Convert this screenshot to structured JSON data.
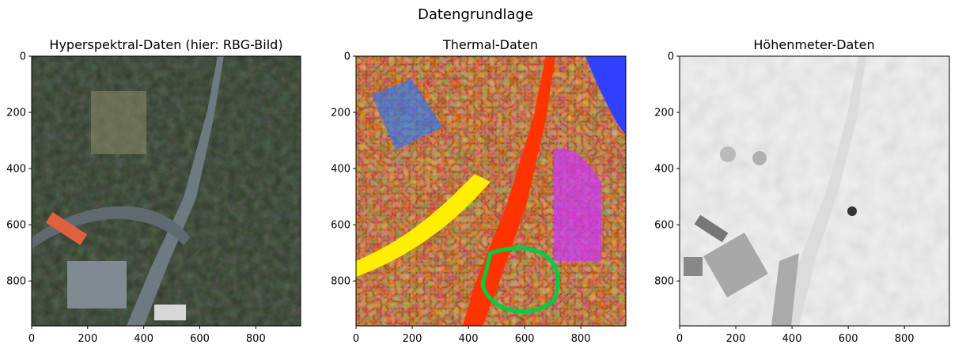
{
  "figure": {
    "suptitle": "Datengrundlage"
  },
  "chart_data": [
    {
      "type": "heatmap",
      "title": "Hyperspektral-Daten (hier: RBG-Bild)",
      "colormap": "rgb-image",
      "xlim": [
        0,
        960
      ],
      "ylim": [
        960,
        0
      ],
      "xticks": [
        0,
        200,
        400,
        600,
        800
      ],
      "yticks": [
        0,
        200,
        400,
        600,
        800
      ]
    },
    {
      "type": "heatmap",
      "title": "Thermal-Daten",
      "colormap": "hsv",
      "xlim": [
        0,
        960
      ],
      "ylim": [
        960,
        0
      ],
      "xticks": [
        0,
        200,
        400,
        600,
        800
      ],
      "yticks": [
        0,
        200,
        400,
        600,
        800
      ]
    },
    {
      "type": "heatmap",
      "title": "Höhenmeter-Daten",
      "colormap": "gray",
      "xlim": [
        0,
        960
      ],
      "ylim": [
        960,
        0
      ],
      "xticks": [
        0,
        200,
        400,
        600,
        800
      ],
      "yticks": [
        0,
        200,
        400,
        600,
        800
      ]
    }
  ]
}
